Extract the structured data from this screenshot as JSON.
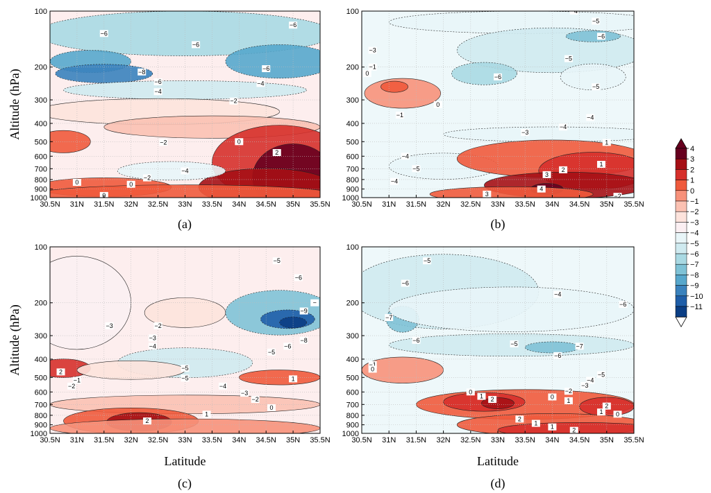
{
  "chart_data": [
    {
      "type": "heatmap",
      "panel": "(a)",
      "ylabel": "Altitude (hPa)",
      "xlabel": "",
      "x_ticks": [
        "30.5N",
        "31N",
        "31.5N",
        "32N",
        "32.5N",
        "33N",
        "33.5N",
        "34N",
        "34.5N",
        "35N",
        "35.5N"
      ],
      "y_ticks": [
        "100",
        "200",
        "300",
        "400",
        "500",
        "600",
        "700",
        "800",
        "900",
        "1000"
      ],
      "xlim": [
        30.5,
        35.5
      ],
      "ylim_hPa": [
        1000,
        100
      ],
      "contour_labels": [
        {
          "lat": 31.5,
          "p": 140,
          "v": "-6"
        },
        {
          "lat": 33.2,
          "p": 160,
          "v": "-6"
        },
        {
          "lat": 35.0,
          "p": 125,
          "v": "-6"
        },
        {
          "lat": 32.2,
          "p": 215,
          "v": "-8"
        },
        {
          "lat": 32.5,
          "p": 245,
          "v": "-6"
        },
        {
          "lat": 34.5,
          "p": 205,
          "v": "-6"
        },
        {
          "lat": 32.5,
          "p": 275,
          "v": "-4"
        },
        {
          "lat": 34.4,
          "p": 250,
          "v": "-4"
        },
        {
          "lat": 33.9,
          "p": 305,
          "v": "-2"
        },
        {
          "lat": 32.6,
          "p": 505,
          "v": "-2"
        },
        {
          "lat": 34.0,
          "p": 500,
          "v": "0"
        },
        {
          "lat": 34.7,
          "p": 575,
          "v": "2"
        },
        {
          "lat": 33.0,
          "p": 720,
          "v": "-4"
        },
        {
          "lat": 32.3,
          "p": 785,
          "v": "-2"
        },
        {
          "lat": 32.0,
          "p": 850,
          "v": "0"
        },
        {
          "lat": 31.0,
          "p": 830,
          "v": "0"
        },
        {
          "lat": 31.5,
          "p": 975,
          "v": "0"
        }
      ]
    },
    {
      "type": "heatmap",
      "panel": "(b)",
      "ylabel": "",
      "xlabel": "",
      "x_ticks": [
        "30.5N",
        "31N",
        "31.5N",
        "32N",
        "32.5N",
        "33N",
        "33.5N",
        "34N",
        "34.5N",
        "35N",
        "35.5N"
      ],
      "y_ticks": [
        "100",
        "200",
        "300",
        "400",
        "500",
        "600",
        "700",
        "800",
        "900",
        "1000"
      ],
      "xlim": [
        30.5,
        35.5
      ],
      "ylim_hPa": [
        1000,
        100
      ],
      "contour_labels": [
        {
          "lat": 34.4,
          "p": 100,
          "v": "-4"
        },
        {
          "lat": 34.8,
          "p": 118,
          "v": "-5"
        },
        {
          "lat": 34.9,
          "p": 145,
          "v": "-6"
        },
        {
          "lat": 30.7,
          "p": 170,
          "v": "-3"
        },
        {
          "lat": 30.7,
          "p": 200,
          "v": "-1"
        },
        {
          "lat": 30.6,
          "p": 220,
          "v": "0"
        },
        {
          "lat": 33.0,
          "p": 230,
          "v": "-6"
        },
        {
          "lat": 34.3,
          "p": 185,
          "v": "-5"
        },
        {
          "lat": 34.8,
          "p": 260,
          "v": "-5"
        },
        {
          "lat": 31.9,
          "p": 320,
          "v": "0"
        },
        {
          "lat": 31.2,
          "p": 365,
          "v": "-1"
        },
        {
          "lat": 34.7,
          "p": 375,
          "v": "-4"
        },
        {
          "lat": 34.2,
          "p": 420,
          "v": "-4"
        },
        {
          "lat": 33.5,
          "p": 450,
          "v": "-3"
        },
        {
          "lat": 35.0,
          "p": 505,
          "v": "1"
        },
        {
          "lat": 31.3,
          "p": 600,
          "v": "-4"
        },
        {
          "lat": 31.5,
          "p": 700,
          "v": "-5"
        },
        {
          "lat": 34.9,
          "p": 665,
          "v": "1"
        },
        {
          "lat": 34.2,
          "p": 710,
          "v": "2"
        },
        {
          "lat": 33.9,
          "p": 755,
          "v": "3"
        },
        {
          "lat": 31.1,
          "p": 820,
          "v": "-4"
        },
        {
          "lat": 33.8,
          "p": 900,
          "v": "4"
        },
        {
          "lat": 32.8,
          "p": 960,
          "v": "3"
        },
        {
          "lat": 35.2,
          "p": 985,
          "v": "-2"
        }
      ]
    },
    {
      "type": "heatmap",
      "panel": "(c)",
      "ylabel": "Altitude (hPa)",
      "xlabel": "Latitude",
      "x_ticks": [
        "30.5N",
        "31N",
        "31.5N",
        "32N",
        "32.5N",
        "33N",
        "33.5N",
        "34N",
        "34.5N",
        "35N",
        "35.5N"
      ],
      "y_ticks": [
        "100",
        "200",
        "300",
        "400",
        "500",
        "600",
        "700",
        "800",
        "900",
        "1000"
      ],
      "xlim": [
        30.5,
        35.5
      ],
      "ylim_hPa": [
        1000,
        100
      ],
      "contour_labels": [
        {
          "lat": 34.7,
          "p": 125,
          "v": "-5"
        },
        {
          "lat": 35.1,
          "p": 155,
          "v": "-6"
        },
        {
          "lat": 35.4,
          "p": 200,
          "v": "-"
        },
        {
          "lat": 35.2,
          "p": 225,
          "v": "-9"
        },
        {
          "lat": 31.6,
          "p": 270,
          "v": "-3"
        },
        {
          "lat": 32.5,
          "p": 270,
          "v": "-2"
        },
        {
          "lat": 32.4,
          "p": 310,
          "v": "-3"
        },
        {
          "lat": 32.4,
          "p": 345,
          "v": "-4"
        },
        {
          "lat": 35.2,
          "p": 320,
          "v": "-8"
        },
        {
          "lat": 34.9,
          "p": 345,
          "v": "-6"
        },
        {
          "lat": 34.6,
          "p": 370,
          "v": "-5"
        },
        {
          "lat": 33.0,
          "p": 450,
          "v": "-5"
        },
        {
          "lat": 33.0,
          "p": 505,
          "v": "-5"
        },
        {
          "lat": 30.7,
          "p": 470,
          "v": "2"
        },
        {
          "lat": 31.0,
          "p": 520,
          "v": "-1"
        },
        {
          "lat": 30.9,
          "p": 560,
          "v": "-2"
        },
        {
          "lat": 33.7,
          "p": 560,
          "v": "-4"
        },
        {
          "lat": 34.1,
          "p": 610,
          "v": "-3"
        },
        {
          "lat": 34.3,
          "p": 660,
          "v": "-2"
        },
        {
          "lat": 34.6,
          "p": 730,
          "v": "0"
        },
        {
          "lat": 35.0,
          "p": 510,
          "v": "1"
        },
        {
          "lat": 33.4,
          "p": 790,
          "v": "1"
        },
        {
          "lat": 32.3,
          "p": 860,
          "v": "2"
        }
      ]
    },
    {
      "type": "heatmap",
      "panel": "(d)",
      "ylabel": "",
      "xlabel": "Latitude",
      "x_ticks": [
        "30.5N",
        "31N",
        "31.5N",
        "32N",
        "32.5N",
        "33N",
        "33.5N",
        "34N",
        "34.5N",
        "35N",
        "35.5N"
      ],
      "y_ticks": [
        "100",
        "200",
        "300",
        "400",
        "500",
        "600",
        "700",
        "800",
        "900",
        "1000"
      ],
      "xlim": [
        30.5,
        35.5
      ],
      "ylim_hPa": [
        1000,
        100
      ],
      "contour_labels": [
        {
          "lat": 31.7,
          "p": 125,
          "v": "-5"
        },
        {
          "lat": 31.3,
          "p": 165,
          "v": "-6"
        },
        {
          "lat": 34.1,
          "p": 185,
          "v": "-4"
        },
        {
          "lat": 35.3,
          "p": 205,
          "v": "-6"
        },
        {
          "lat": 31.0,
          "p": 245,
          "v": "-7"
        },
        {
          "lat": 31.5,
          "p": 320,
          "v": "-6"
        },
        {
          "lat": 33.3,
          "p": 335,
          "v": "-5"
        },
        {
          "lat": 34.5,
          "p": 345,
          "v": "-7"
        },
        {
          "lat": 34.1,
          "p": 385,
          "v": "-6"
        },
        {
          "lat": 30.7,
          "p": 430,
          "v": "-1"
        },
        {
          "lat": 30.7,
          "p": 455,
          "v": "0"
        },
        {
          "lat": 34.9,
          "p": 485,
          "v": "-5"
        },
        {
          "lat": 34.7,
          "p": 520,
          "v": "-4"
        },
        {
          "lat": 34.6,
          "p": 555,
          "v": "-3"
        },
        {
          "lat": 34.3,
          "p": 595,
          "v": "-2"
        },
        {
          "lat": 32.5,
          "p": 600,
          "v": "0"
        },
        {
          "lat": 32.7,
          "p": 635,
          "v": "1"
        },
        {
          "lat": 32.9,
          "p": 660,
          "v": "2"
        },
        {
          "lat": 34.0,
          "p": 640,
          "v": "0"
        },
        {
          "lat": 34.3,
          "p": 670,
          "v": "1"
        },
        {
          "lat": 35.0,
          "p": 715,
          "v": "2"
        },
        {
          "lat": 34.9,
          "p": 770,
          "v": "1"
        },
        {
          "lat": 35.2,
          "p": 790,
          "v": "0"
        },
        {
          "lat": 33.4,
          "p": 840,
          "v": "2"
        },
        {
          "lat": 33.7,
          "p": 885,
          "v": "1"
        },
        {
          "lat": 34.0,
          "p": 925,
          "v": "1"
        },
        {
          "lat": 34.4,
          "p": 965,
          "v": "2"
        }
      ]
    }
  ],
  "colorbar": {
    "ticks": [
      "4",
      "3",
      "2",
      "1",
      "0",
      "−1",
      "−2",
      "−3",
      "−4",
      "−5",
      "−6",
      "−7",
      "−8",
      "−9",
      "−10",
      "−11"
    ],
    "colors": [
      "#67001f",
      "#a50f15",
      "#d6302b",
      "#ef5a3c",
      "#f7917a",
      "#fbc1b2",
      "#fde3dc",
      "#fbeff2",
      "#e8f5f8",
      "#cfeaf0",
      "#a9d9e3",
      "#7fc2d6",
      "#57a7cc",
      "#3a82bd",
      "#1f5ea8",
      "#0b3e84",
      "#052a60"
    ]
  },
  "colors": {
    "base_positive": "#fde6e6",
    "base_negative": "#e4f3f7"
  }
}
